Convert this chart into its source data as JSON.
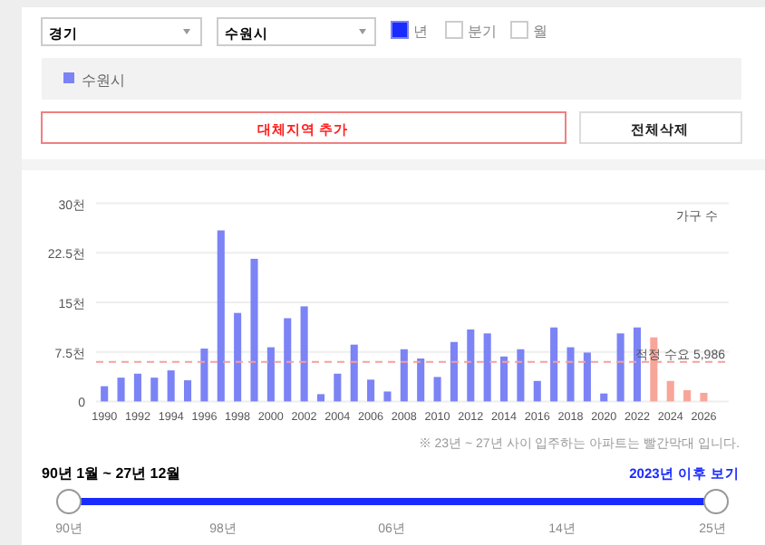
{
  "chart_data": {
    "type": "bar",
    "ylabel": "가구 수",
    "categories": [
      "1990",
      null,
      "1992",
      null,
      "1994",
      null,
      "1996",
      null,
      "1998",
      null,
      "2000",
      null,
      "2002",
      null,
      "2004",
      null,
      "2006",
      null,
      "2008",
      null,
      "2010",
      null,
      "2012",
      null,
      "2014",
      null,
      "2016",
      null,
      "2018",
      null,
      "2020",
      null,
      "2022",
      null,
      "2024",
      null,
      "2026"
    ],
    "series": [
      {
        "name": "수원시",
        "color": "#7b83f5",
        "values": [
          2.3,
          3.6,
          4.2,
          3.6,
          4.7,
          3.2,
          8,
          25.9,
          13.4,
          21.6,
          8.2,
          12.6,
          14.4,
          1.1,
          4.2,
          8.6,
          3.3,
          1.5,
          7.9,
          6.5,
          3.7,
          9,
          10.9,
          10.3,
          6.8,
          7.9,
          3.1,
          11.2,
          8.2,
          7.4,
          1.2,
          10.3,
          11.2,
          9.7,
          3.1,
          1.7,
          1.3
        ],
        "colors": [
          "#7b83f5",
          "#7b83f5",
          "#7b83f5",
          "#7b83f5",
          "#7b83f5",
          "#7b83f5",
          "#7b83f5",
          "#7b83f5",
          "#7b83f5",
          "#7b83f5",
          "#7b83f5",
          "#7b83f5",
          "#7b83f5",
          "#7b83f5",
          "#7b83f5",
          "#7b83f5",
          "#7b83f5",
          "#7b83f5",
          "#7b83f5",
          "#7b83f5",
          "#7b83f5",
          "#7b83f5",
          "#7b83f5",
          "#7b83f5",
          "#7b83f5",
          "#7b83f5",
          "#7b83f5",
          "#7b83f5",
          "#7b83f5",
          "#7b83f5",
          "#7b83f5",
          "#7b83f5",
          "#7b83f5",
          "#f8a59a",
          "#f8a59a",
          "#f8a59a",
          "#f8a59a"
        ]
      }
    ],
    "ylim": [
      0,
      30
    ],
    "yticks": [
      0,
      {
        "value": 7.5,
        "label": "7.5천"
      },
      {
        "value": 15,
        "label": "15천"
      },
      {
        "value": 22.5,
        "label": "22.5천"
      },
      {
        "value": 30,
        "label": "30천"
      }
    ],
    "grid": "y",
    "legend": "top",
    "ref_lines": [
      {
        "axis": "y",
        "value": 5.986,
        "label": "적정 수요 5,986",
        "color": "#f4a0a0",
        "line_style": "dashed"
      }
    ],
    "annotations": [
      "경기",
      "수원시",
      "년",
      "분기",
      "월",
      "대체지역 추가",
      "전체삭제",
      "※ 23년 ~ 27년 사이 입주하는 아파트는 빨간막대 입니다.",
      "90년 1월 ~ 27년 12월",
      "2023년 이후 보기",
      "90년",
      "98년",
      "06년",
      "14년",
      "25년"
    ]
  }
}
